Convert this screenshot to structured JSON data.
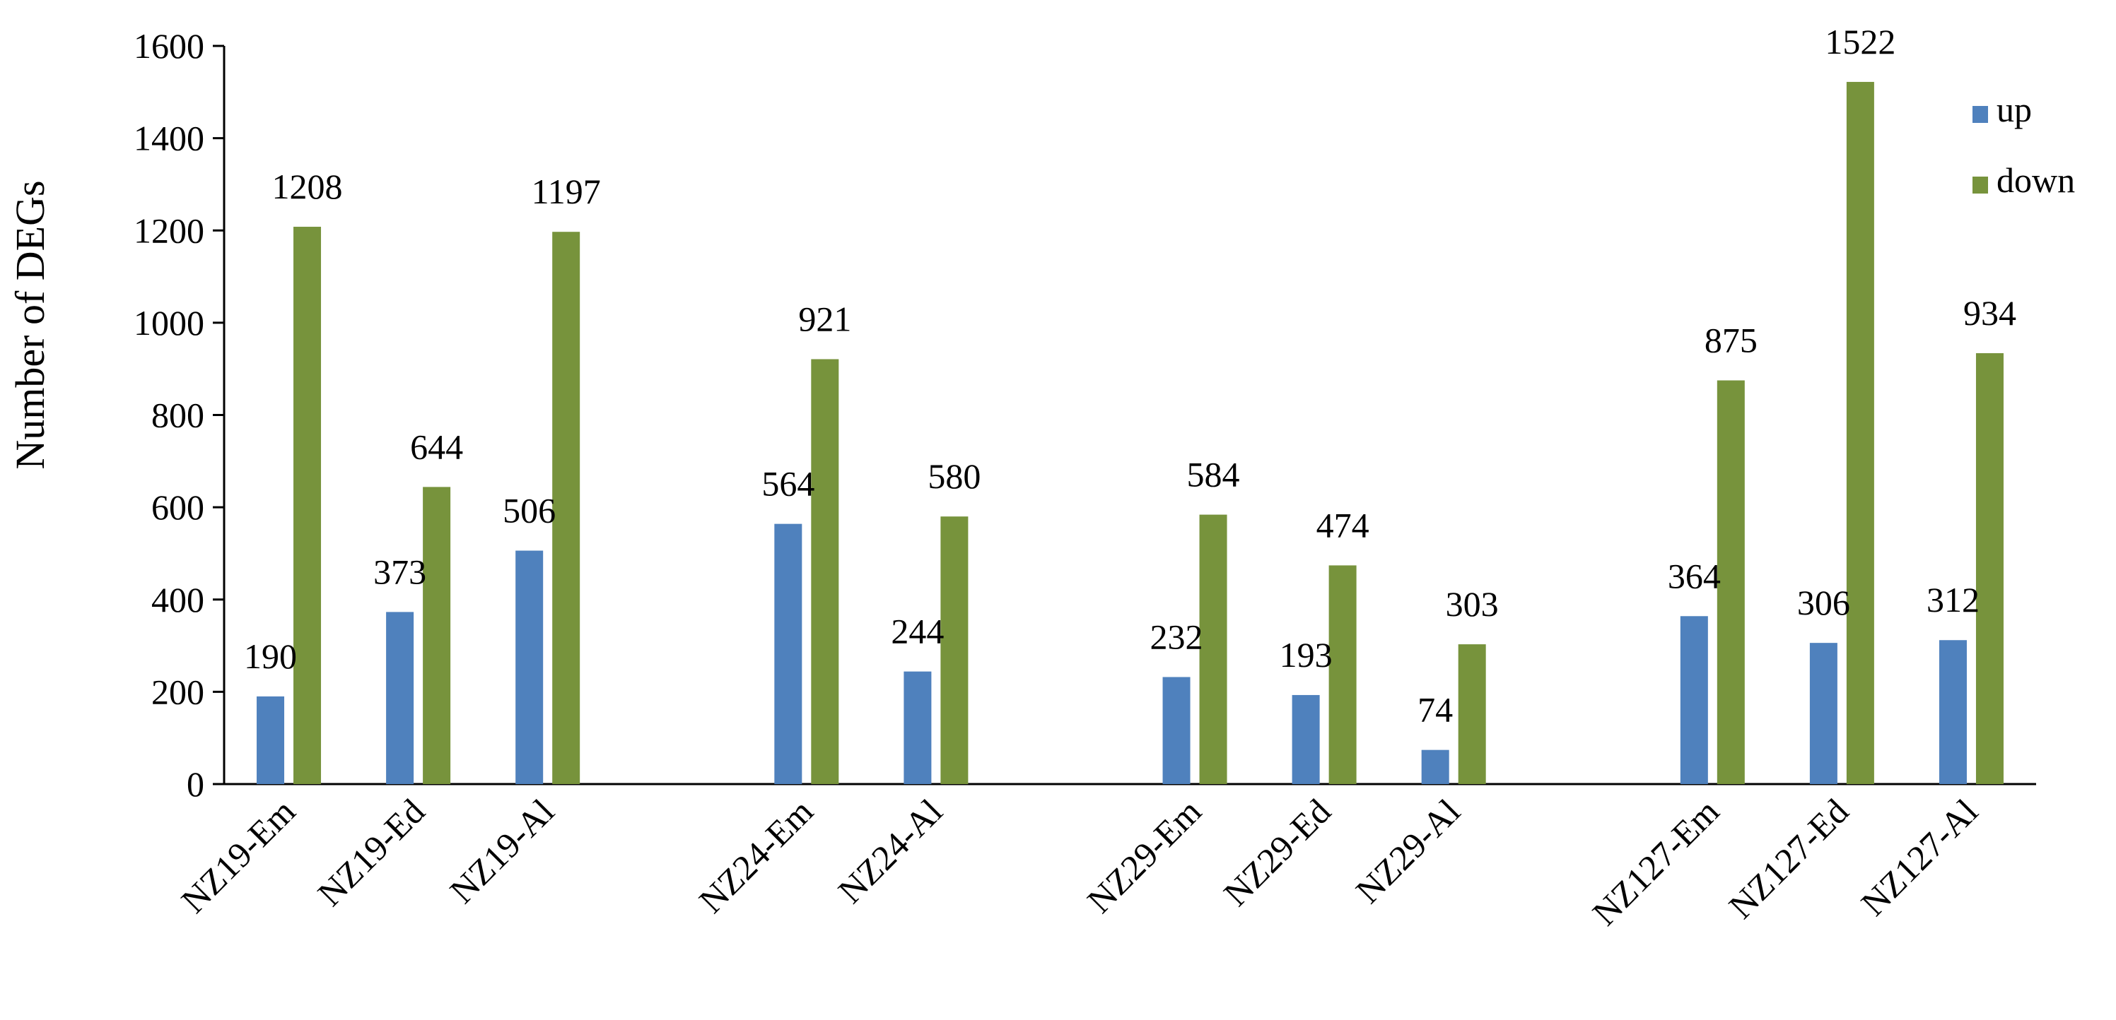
{
  "chart_data": {
    "type": "bar",
    "title": "",
    "xlabel": "",
    "ylabel": "Number of DEGs",
    "ylim": [
      0,
      1600
    ],
    "yticks": [
      0,
      200,
      400,
      600,
      800,
      1000,
      1200,
      1400,
      1600
    ],
    "grid": false,
    "legend_position": "top-right",
    "categories": [
      "NZ19-Em",
      "NZ19-Ed",
      "NZ19-Al",
      "NZ24-Em",
      "NZ24-Al",
      "NZ29-Em",
      "NZ29-Ed",
      "NZ29-Al",
      "NZ127-Em",
      "NZ127-Ed",
      "NZ127-Al"
    ],
    "groups": [
      3,
      2,
      3,
      3
    ],
    "series": [
      {
        "name": "up",
        "color": "#4F81BD",
        "values": [
          190,
          373,
          506,
          564,
          244,
          232,
          193,
          74,
          364,
          306,
          312
        ]
      },
      {
        "name": "down",
        "color": "#77933C",
        "values": [
          1208,
          644,
          1197,
          921,
          580,
          584,
          474,
          303,
          875,
          1522,
          934
        ]
      }
    ]
  }
}
